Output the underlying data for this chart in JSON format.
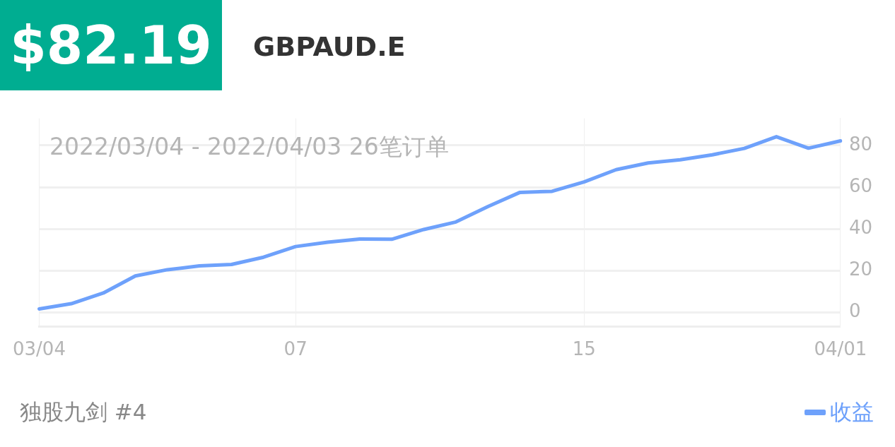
{
  "chart_data": {
    "type": "line",
    "title": "$82.19",
    "subtitle": "GBPAUD.E",
    "annotations": [
      "2022/03/04 - 2022/04/03  26笔订单",
      "独股九剑 #4"
    ],
    "categories": [
      "03/04",
      null,
      null,
      null,
      null,
      null,
      null,
      null,
      "07",
      null,
      null,
      null,
      null,
      null,
      null,
      null,
      null,
      "15",
      null,
      null,
      null,
      null,
      null,
      null,
      null,
      "04/01"
    ],
    "series": [
      {
        "name": "收益",
        "color": "#6ea1fb",
        "values": [
          1.6,
          4.1,
          9.2,
          17.4,
          20.4,
          22.2,
          22.9,
          26.4,
          31.5,
          33.6,
          35.1,
          35.0,
          39.7,
          43.3,
          50.7,
          57.5,
          58.0,
          62.5,
          68.4,
          71.6,
          73.1,
          75.5,
          78.6,
          84.2,
          78.7,
          82.2
        ]
      }
    ],
    "ylim": [
      -7,
      93
    ],
    "yticks": [
      0,
      20,
      40,
      60,
      80
    ],
    "grid": true,
    "legend": "bottom right",
    "marker": "none",
    "line_style": "solid"
  }
}
